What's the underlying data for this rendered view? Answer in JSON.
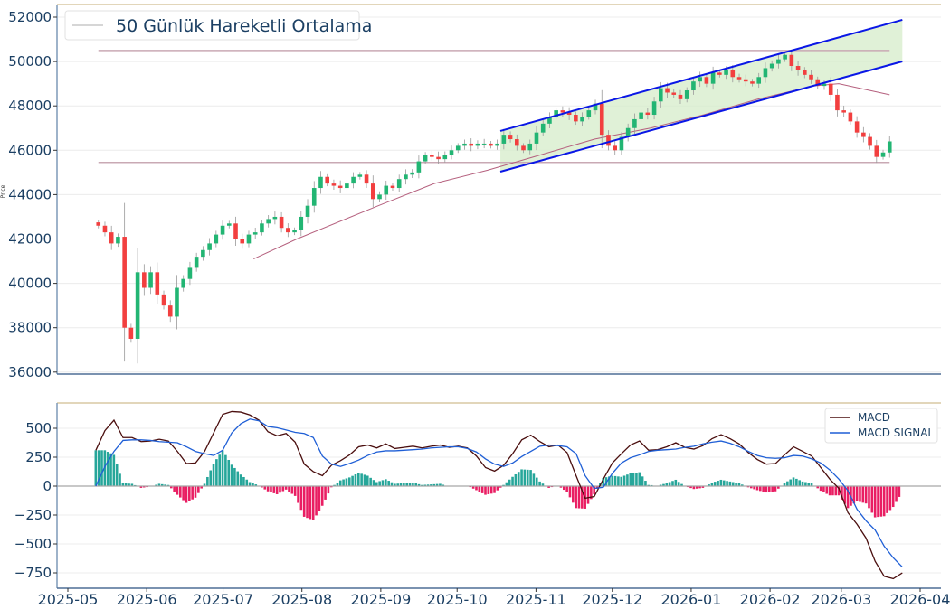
{
  "chart_data": [
    {
      "type": "candlestick",
      "title": "",
      "ylabel": "Price",
      "ylim": [
        36000,
        52000
      ],
      "yticks": [
        "36000",
        "38000",
        "40000",
        "42000",
        "44000",
        "46000",
        "48000",
        "50000",
        "52000"
      ],
      "grid": true,
      "legend": {
        "placement": "top-left",
        "entries": [
          "50 Günlük Hareketli Ortalama"
        ]
      },
      "colors": {
        "up": "#22b573",
        "down": "#f23f3f",
        "ma": "#b5607e",
        "hline": "#c9a9b4",
        "channel": "#0a17e6",
        "channel_fill": "#d6ecc9"
      },
      "candles": {
        "start_date": "2025-05-13",
        "end_date": "2026-03-20",
        "close": [
          42600,
          42300,
          41800,
          42100,
          38000,
          37500,
          40500,
          39800,
          40500,
          39500,
          39000,
          38500,
          39800,
          40200,
          40700,
          41200,
          41500,
          41800,
          42200,
          42600,
          42700,
          42000,
          41800,
          42200,
          42300,
          42700,
          42900,
          43000,
          42500,
          42300,
          42400,
          43000,
          43500,
          44300,
          44800,
          44500,
          44400,
          44300,
          44500,
          44800,
          44900,
          44500,
          43800,
          44000,
          44400,
          44300,
          44700,
          44900,
          45000,
          45500,
          45800,
          45700,
          45600,
          45800,
          46000,
          46200,
          46300,
          46200,
          46300,
          46300,
          46200,
          46300,
          46700,
          46500,
          46200,
          46000,
          46300,
          46800,
          47200,
          47500,
          47800,
          47700,
          47600,
          47300,
          47500,
          47800,
          48100,
          46700,
          46200,
          46000,
          46600,
          47000,
          47400,
          47700,
          47600,
          48200,
          48800,
          48600,
          48500,
          48300,
          48700,
          49100,
          49300,
          49000,
          49500,
          49400,
          49600,
          49300,
          49200,
          49100,
          49000,
          49300,
          49700,
          49900,
          50100,
          50300,
          49800,
          49600,
          49400,
          49200,
          48900,
          49000,
          48500,
          47800,
          47700,
          47300,
          46800,
          46600,
          46200,
          45700,
          45900,
          46400
        ]
      },
      "ma50": [
        [
          "2025-07-13",
          41100
        ],
        [
          "2025-07-30",
          42000
        ],
        [
          "2025-08-31",
          43500
        ],
        [
          "2025-09-22",
          44500
        ],
        [
          "2025-10-13",
          45100
        ],
        [
          "2025-11-03",
          45800
        ],
        [
          "2025-11-24",
          46500
        ],
        [
          "2025-12-16",
          47000
        ],
        [
          "2026-01-06",
          47600
        ],
        [
          "2026-01-27",
          48300
        ],
        [
          "2026-02-18",
          48900
        ],
        [
          "2026-02-28",
          49000
        ],
        [
          "2026-03-20",
          48500
        ]
      ],
      "horizontal_lines": [
        {
          "value": 50500,
          "from": "2025-05-13",
          "to": "2026-03-20"
        },
        {
          "value": 45450,
          "from": "2025-05-13",
          "to": "2026-03-20"
        }
      ],
      "channel": {
        "upper": [
          [
            "2025-10-18",
            46870
          ],
          [
            "2026-03-25",
            51880
          ]
        ],
        "lower": [
          [
            "2025-10-18",
            45035
          ],
          [
            "2026-03-25",
            50005
          ]
        ]
      }
    },
    {
      "type": "line",
      "title": "",
      "ylim": [
        -900,
        700
      ],
      "yticks": [
        "−750",
        "−500",
        "−250",
        "0",
        "250",
        "500"
      ],
      "ytick_values": [
        -750,
        -500,
        -250,
        0,
        250,
        500
      ],
      "xticks": [
        "2025-05",
        "2025-06",
        "2025-07",
        "2025-08",
        "2025-09",
        "2025-10",
        "2025-11",
        "2025-12",
        "2026-01",
        "2026-02",
        "2026-03",
        "2026-04"
      ],
      "grid": true,
      "legend": {
        "placement": "top-right",
        "entries": [
          "MACD",
          "MACD SIGNAL"
        ]
      },
      "colors": {
        "macd": "#4a0e0e",
        "signal": "#1f5fd6",
        "hist_pos": "#26a69a",
        "hist_neg": "#e91e63"
      },
      "start_date": "2025-05-12",
      "end_date": "2026-03-25",
      "macd": [
        310,
        480,
        570,
        420,
        420,
        385,
        390,
        405,
        390,
        300,
        195,
        200,
        300,
        460,
        620,
        645,
        640,
        615,
        570,
        470,
        435,
        455,
        380,
        190,
        125,
        90,
        180,
        220,
        270,
        340,
        355,
        330,
        365,
        325,
        335,
        345,
        330,
        345,
        355,
        335,
        345,
        330,
        260,
        160,
        130,
        180,
        280,
        400,
        440,
        385,
        340,
        355,
        290,
        90,
        -105,
        -90,
        60,
        200,
        280,
        355,
        390,
        310,
        315,
        340,
        375,
        335,
        320,
        350,
        410,
        445,
        410,
        365,
        290,
        230,
        190,
        195,
        270,
        340,
        300,
        260,
        160,
        60,
        -20,
        -230,
        -330,
        -450,
        -650,
        -780,
        -800,
        -750
      ],
      "signal": [
        0,
        170,
        300,
        395,
        400,
        400,
        395,
        385,
        380,
        375,
        340,
        300,
        280,
        265,
        310,
        460,
        540,
        580,
        565,
        515,
        505,
        485,
        465,
        455,
        420,
        260,
        190,
        170,
        195,
        225,
        265,
        295,
        305,
        305,
        310,
        315,
        320,
        330,
        335,
        340,
        340,
        325,
        295,
        235,
        190,
        170,
        200,
        255,
        300,
        345,
        355,
        350,
        340,
        280,
        90,
        -20,
        -10,
        110,
        200,
        245,
        270,
        300,
        310,
        315,
        320,
        335,
        345,
        365,
        380,
        390,
        370,
        340,
        300,
        265,
        245,
        240,
        245,
        265,
        260,
        235,
        200,
        140,
        60,
        -40,
        -200,
        -300,
        -380,
        -520,
        -620,
        -700
      ]
    }
  ]
}
